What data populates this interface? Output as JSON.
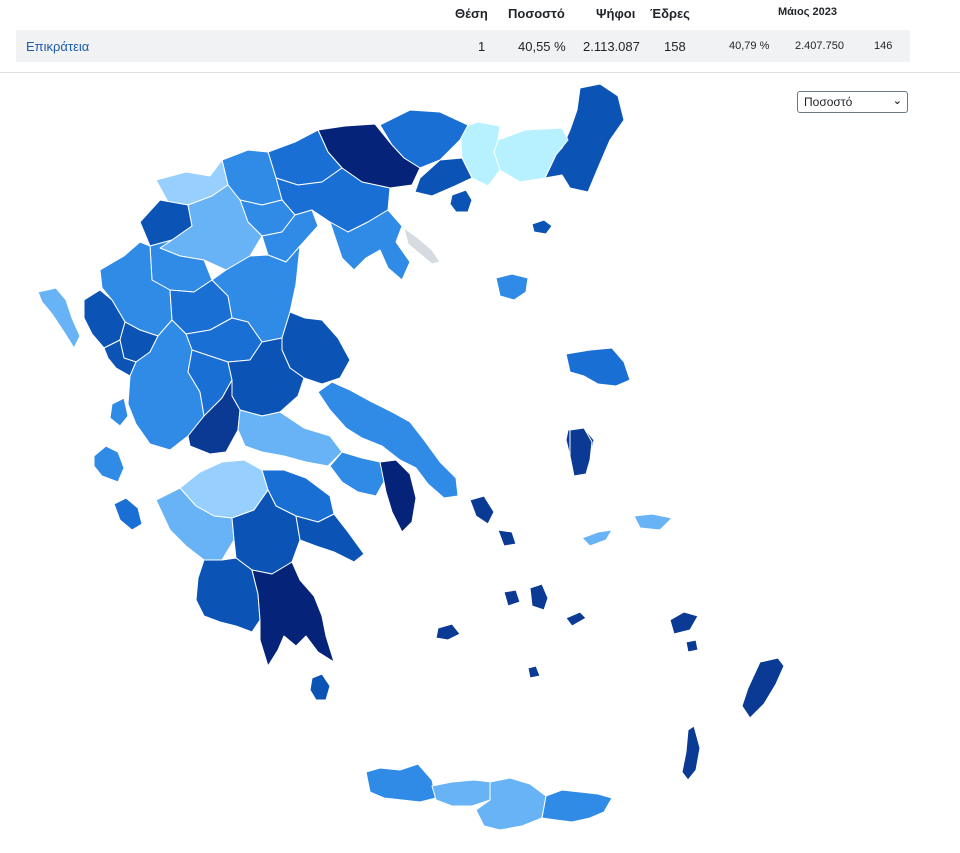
{
  "table": {
    "headers": {
      "rank": "Θέση",
      "percent": "Ποσοστό",
      "votes": "Ψήφοι",
      "seats": "Έδρες",
      "previous": "Μάιος 2023"
    },
    "row": {
      "region": "Επικράτεια",
      "rank": "1",
      "percent": "40,55 %",
      "votes": "2.113.087",
      "seats": "158",
      "prev_percent": "40,79 %",
      "prev_votes": "2.407.750",
      "prev_seats": "146"
    }
  },
  "controls": {
    "metric_select": {
      "selected": "Ποσοστό"
    }
  },
  "map": {
    "colors": {
      "level_1": "#b7f1ff",
      "level_2": "#97cfff",
      "level_3": "#68b3f5",
      "level_4": "#2f8be6",
      "level_5": "#1a6fd4",
      "level_6": "#0b54b5",
      "level_7": "#0a3a93",
      "level_8": "#06237a",
      "no_data": "#d6dbe1"
    }
  }
}
